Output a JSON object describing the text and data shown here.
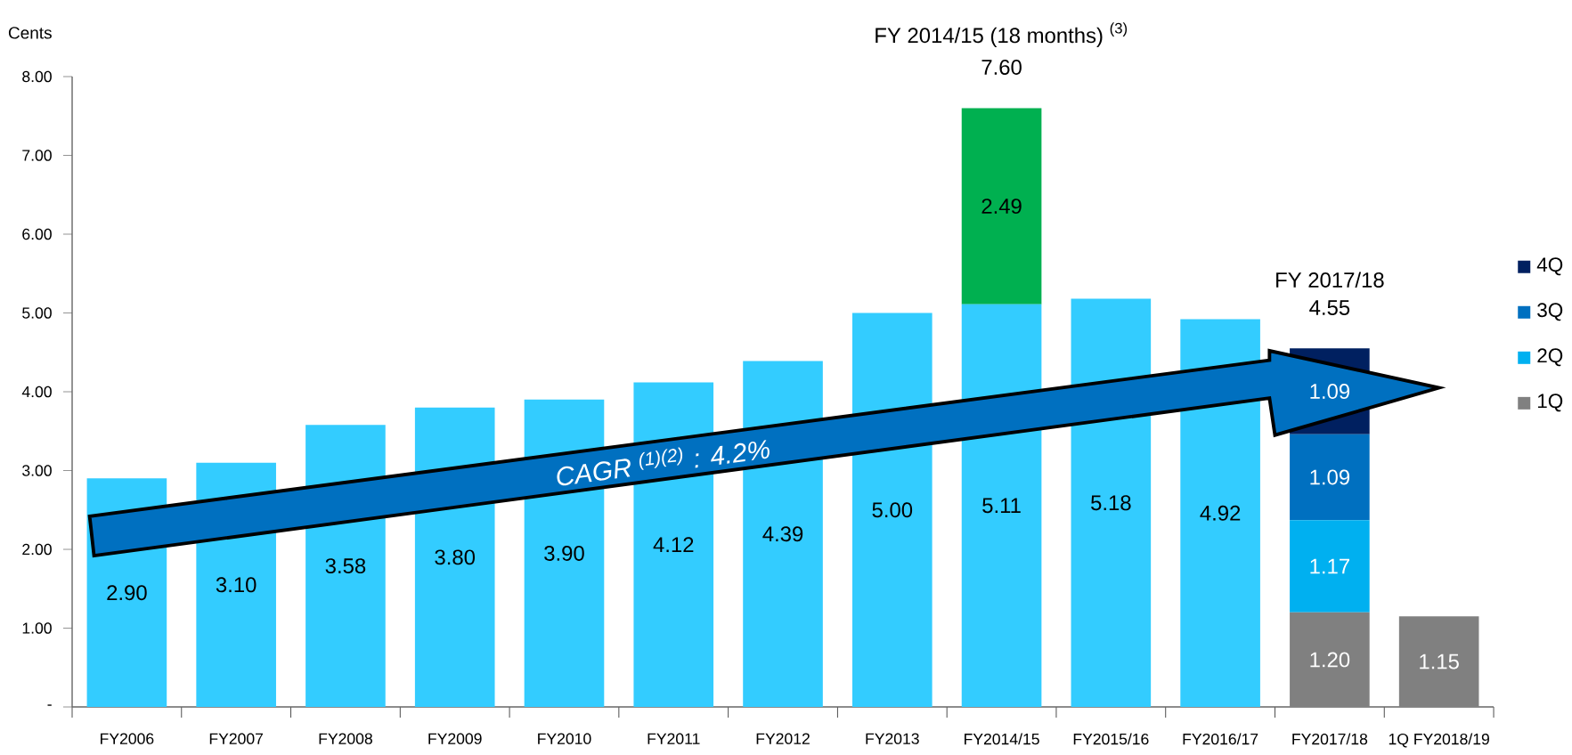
{
  "chart_data": {
    "type": "bar",
    "stacked": true,
    "ylabel": "Cents",
    "categories": [
      "FY2006",
      "FY2007",
      "FY2008",
      "FY2009",
      "FY2010",
      "FY2011",
      "FY2012",
      "FY2013",
      "FY2014/15",
      "FY2015/16",
      "FY2016/17",
      "FY2017/18",
      "1Q FY2018/19"
    ],
    "series": [
      {
        "name": "1Q",
        "color": "#808080",
        "values": [
          null,
          null,
          null,
          null,
          null,
          null,
          null,
          null,
          null,
          null,
          null,
          1.2,
          1.15
        ],
        "value_labels": [
          null,
          null,
          null,
          null,
          null,
          null,
          null,
          null,
          null,
          null,
          null,
          "1.20",
          "1.15"
        ]
      },
      {
        "name": "2Q",
        "color": "#00b0f0",
        "values": [
          null,
          null,
          null,
          null,
          null,
          null,
          null,
          null,
          null,
          null,
          null,
          1.17,
          null
        ],
        "value_labels": [
          null,
          null,
          null,
          null,
          null,
          null,
          null,
          null,
          null,
          null,
          null,
          "1.17",
          null
        ]
      },
      {
        "name": "3Q",
        "color": "#0070c0",
        "values": [
          null,
          null,
          null,
          null,
          null,
          null,
          null,
          null,
          null,
          null,
          null,
          1.09,
          null
        ],
        "value_labels": [
          null,
          null,
          null,
          null,
          null,
          null,
          null,
          null,
          null,
          null,
          null,
          "1.09",
          null
        ]
      },
      {
        "name": "4Q",
        "color": "#002060",
        "values": [
          null,
          null,
          null,
          null,
          null,
          null,
          null,
          null,
          null,
          null,
          null,
          1.09,
          null
        ],
        "value_labels": [
          null,
          null,
          null,
          null,
          null,
          null,
          null,
          null,
          null,
          null,
          null,
          "1.09",
          null
        ]
      },
      {
        "color": "#33ccff",
        "values": [
          2.9,
          3.1,
          3.58,
          3.8,
          3.9,
          4.12,
          4.39,
          5.0,
          5.11,
          5.18,
          4.92,
          null,
          null
        ],
        "value_labels": [
          "2.90",
          "3.10",
          "3.58",
          "3.80",
          "3.90",
          "4.12",
          "4.39",
          "5.00",
          "5.11",
          "5.18",
          "4.92",
          null,
          null
        ]
      },
      {
        "color": "#00b050",
        "values": [
          null,
          null,
          null,
          null,
          null,
          null,
          null,
          null,
          2.49,
          null,
          null,
          null,
          null
        ],
        "value_labels": [
          null,
          null,
          null,
          null,
          null,
          null,
          null,
          null,
          "2.49",
          null,
          null,
          null,
          null
        ]
      }
    ],
    "totals": [
      null,
      null,
      null,
      null,
      null,
      null,
      null,
      null,
      "7.60",
      null,
      null,
      "4.55",
      null
    ],
    "annotations": [
      "FY 2014/15 (18 months) $^{(3)}$",
      "FY 2017/18",
      "CAGR $^{(1)(2)}$ : 4.2%"
    ],
    "ylim": [
      0,
      8
    ],
    "yticks": [
      {
        "value": 0,
        "label": "-"
      },
      {
        "value": 1,
        "label": "1.00"
      },
      {
        "value": 2,
        "label": "2.00"
      },
      {
        "value": 3,
        "label": "3.00"
      },
      {
        "value": 4,
        "label": "4.00"
      },
      {
        "value": 5,
        "label": "5.00"
      },
      {
        "value": 6,
        "label": "6.00"
      },
      {
        "value": 7,
        "label": "7.00"
      },
      {
        "value": 8,
        "label": "8.00"
      }
    ],
    "legend": "right"
  }
}
